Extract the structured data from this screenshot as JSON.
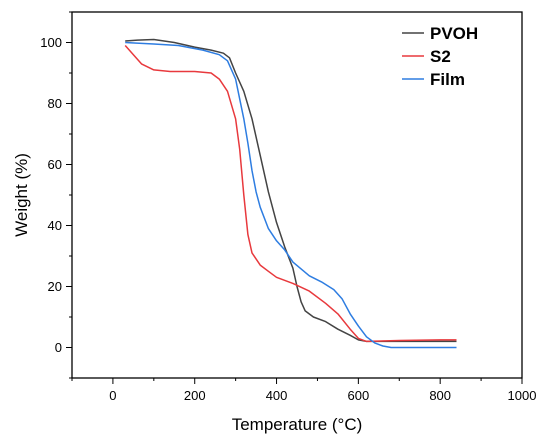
{
  "chart_data": {
    "type": "line",
    "xlabel": "Temperature (°C)",
    "ylabel": "Weight (%)",
    "xlim": [
      -100,
      1000
    ],
    "ylim": [
      -10,
      110
    ],
    "xticks": [
      0,
      200,
      400,
      600,
      800,
      1000
    ],
    "yticks": [
      0,
      20,
      40,
      60,
      80,
      100
    ],
    "xtick_labels": [
      "0",
      "200",
      "400",
      "600",
      "800",
      "1000"
    ],
    "ytick_labels": [
      "0",
      "20",
      "40",
      "60",
      "80",
      "100"
    ],
    "legend_position": "top-right",
    "grid": false,
    "series": [
      {
        "name": "PVOH",
        "color": "#444444",
        "points": [
          [
            30,
            100.5
          ],
          [
            60,
            100.8
          ],
          [
            100,
            101
          ],
          [
            150,
            100
          ],
          [
            200,
            98.5
          ],
          [
            240,
            97.5
          ],
          [
            270,
            96.5
          ],
          [
            285,
            95
          ],
          [
            300,
            90
          ],
          [
            320,
            84
          ],
          [
            340,
            75
          ],
          [
            360,
            63
          ],
          [
            380,
            51
          ],
          [
            400,
            41
          ],
          [
            420,
            33
          ],
          [
            440,
            26
          ],
          [
            450,
            20
          ],
          [
            460,
            15
          ],
          [
            470,
            12
          ],
          [
            490,
            10
          ],
          [
            520,
            8.5
          ],
          [
            550,
            6
          ],
          [
            580,
            4
          ],
          [
            600,
            2.5
          ],
          [
            620,
            2
          ],
          [
            700,
            2
          ],
          [
            800,
            2
          ],
          [
            840,
            2
          ]
        ]
      },
      {
        "name": "S2",
        "color": "#e8393d",
        "points": [
          [
            30,
            99
          ],
          [
            50,
            96
          ],
          [
            70,
            93
          ],
          [
            100,
            91
          ],
          [
            140,
            90.5
          ],
          [
            200,
            90.5
          ],
          [
            240,
            90
          ],
          [
            260,
            88
          ],
          [
            280,
            84
          ],
          [
            300,
            75
          ],
          [
            310,
            65
          ],
          [
            320,
            50
          ],
          [
            330,
            37
          ],
          [
            340,
            31
          ],
          [
            360,
            27
          ],
          [
            380,
            25
          ],
          [
            400,
            23
          ],
          [
            440,
            21
          ],
          [
            480,
            18.5
          ],
          [
            520,
            14.5
          ],
          [
            550,
            11
          ],
          [
            580,
            6
          ],
          [
            600,
            3
          ],
          [
            620,
            2
          ],
          [
            700,
            2.3
          ],
          [
            800,
            2.5
          ],
          [
            840,
            2.5
          ]
        ]
      },
      {
        "name": "Film",
        "color": "#2e7de1",
        "points": [
          [
            30,
            100
          ],
          [
            100,
            99.5
          ],
          [
            160,
            99
          ],
          [
            220,
            97.5
          ],
          [
            260,
            96
          ],
          [
            280,
            94
          ],
          [
            300,
            88
          ],
          [
            320,
            75
          ],
          [
            330,
            67
          ],
          [
            340,
            58
          ],
          [
            350,
            51
          ],
          [
            360,
            46
          ],
          [
            380,
            39
          ],
          [
            400,
            35
          ],
          [
            420,
            32
          ],
          [
            440,
            28
          ],
          [
            480,
            23.5
          ],
          [
            510,
            21.5
          ],
          [
            540,
            19
          ],
          [
            560,
            16
          ],
          [
            580,
            11
          ],
          [
            600,
            7
          ],
          [
            620,
            3.5
          ],
          [
            640,
            1.5
          ],
          [
            660,
            0.5
          ],
          [
            680,
            0
          ],
          [
            700,
            0
          ],
          [
            800,
            0
          ],
          [
            840,
            0
          ]
        ]
      }
    ]
  }
}
